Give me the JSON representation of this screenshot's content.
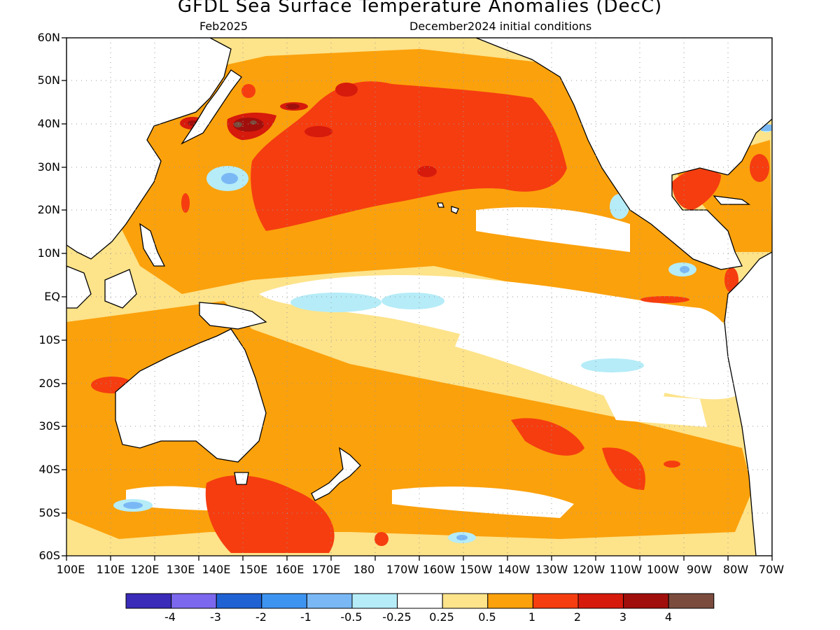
{
  "title": "GFDL Sea Surface Temperature Anomalies (DecC)",
  "subtitle_left": "Feb2025",
  "subtitle_right": "December2024 initial conditions",
  "lat_labels": [
    "60N",
    "50N",
    "40N",
    "30N",
    "20N",
    "10N",
    "EQ",
    "10S",
    "20S",
    "30S",
    "40S",
    "50S",
    "60S"
  ],
  "lon_labels": [
    "100E",
    "110E",
    "120E",
    "130E",
    "140E",
    "150E",
    "160E",
    "170E",
    "180",
    "170W",
    "160W",
    "150W",
    "140W",
    "130W",
    "120W",
    "110W",
    "100W",
    "90W",
    "80W",
    "70W"
  ],
  "colorbar": {
    "colors": [
      "#3a2bb8",
      "#7b68ee",
      "#1f62d4",
      "#3d93f0",
      "#7ab8f5",
      "#b5ecf8",
      "#ffffff",
      "#fde38a",
      "#fba10c",
      "#f53d10",
      "#d61a0c",
      "#a00f0c",
      "#7b4c3e"
    ],
    "labels": [
      "-4",
      "-3",
      "-2",
      "-1",
      "-0.5",
      "-0.25",
      "0.25",
      "0.5",
      "1",
      "2",
      "3",
      "4"
    ]
  },
  "map": {
    "background": "#fde38a",
    "features": {
      "neutral_equatorial_band": "#ffffff",
      "cool_anomaly": "#b5ecf8",
      "warm_anomaly": "#fba10c",
      "strong_warm": "#f53d10",
      "very_strong_warm": "#d61a0c",
      "extreme_warm": "#a00f0c"
    }
  }
}
